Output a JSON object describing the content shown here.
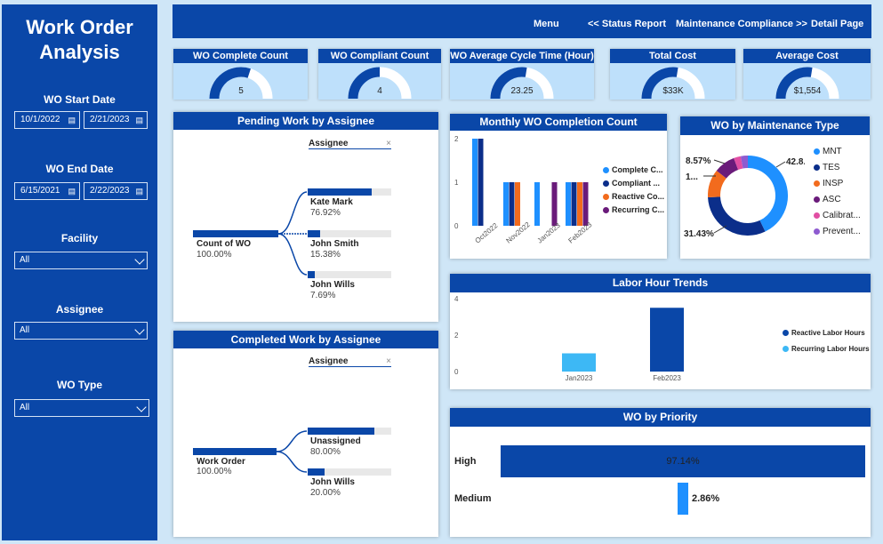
{
  "sidebar": {
    "title_line1": "Work Order",
    "title_line2": "Analysis",
    "start_date_label": "WO Start Date",
    "start_from": "10/1/2022",
    "start_to": "2/21/2023",
    "end_date_label": "WO End Date",
    "end_from": "6/15/2021",
    "end_to": "2/22/2023",
    "facility_label": "Facility",
    "facility_value": "All",
    "assignee_label": "Assignee",
    "assignee_value": "All",
    "wotype_label": "WO Type",
    "wotype_value": "All"
  },
  "nav": {
    "menu": "Menu",
    "status": "<< Status Report",
    "compliance": "Maintenance Compliance >>",
    "detail": "Detail Page"
  },
  "kpis": [
    {
      "title": "WO Complete Count",
      "value": "5",
      "fill": 0.6
    },
    {
      "title": "WO Compliant Count",
      "value": "4",
      "fill": 0.5
    },
    {
      "title": "WO Average Cycle Time (Hour)",
      "value": "23.25",
      "fill": 0.55
    },
    {
      "title": "Total Cost",
      "value": "$33K",
      "fill": 0.55
    },
    {
      "title": "Average Cost",
      "value": "$1,554",
      "fill": 0.55
    }
  ],
  "pending": {
    "title": "Pending Work by Assignee",
    "slicer": "Assignee",
    "root_label": "Count of WO",
    "root_pct": "100.00%",
    "items": [
      {
        "name": "Kate Mark",
        "pct": "76.92%",
        "value": 0.7692
      },
      {
        "name": "John Smith",
        "pct": "15.38%",
        "value": 0.1538
      },
      {
        "name": "John Wills",
        "pct": "7.69%",
        "value": 0.0769
      }
    ]
  },
  "completed": {
    "title": "Completed Work by Assignee",
    "slicer": "Assignee",
    "root_label": "Work Order",
    "root_pct": "100.00%",
    "items": [
      {
        "name": "Unassigned",
        "pct": "80.00%",
        "value": 0.8
      },
      {
        "name": "John Wills",
        "pct": "20.00%",
        "value": 0.2
      }
    ]
  },
  "colors": {
    "navy": "#0a47a8",
    "dark_navy": "#0b2e8a",
    "light_blue": "#1e90ff",
    "orange": "#f26b1d",
    "purple": "#6a1b7a",
    "pink": "#e14ea3",
    "violet": "#8e5bd0"
  },
  "monthly": {
    "title": "Monthly WO Completion Count",
    "legend": [
      "Complete C...",
      "Compliant ...",
      "Reactive Co...",
      "Recurring C..."
    ],
    "chart_data": {
      "type": "bar",
      "categories": [
        "Oct2022",
        "Nov2022",
        "Jan2023",
        "Feb2023"
      ],
      "series": [
        {
          "name": "Complete C...",
          "values": [
            2,
            1,
            1,
            1
          ]
        },
        {
          "name": "Compliant ...",
          "values": [
            2,
            1,
            0,
            1
          ]
        },
        {
          "name": "Reactive Co...",
          "values": [
            0,
            1,
            0,
            1
          ]
        },
        {
          "name": "Recurring C...",
          "values": [
            0,
            0,
            1,
            1
          ]
        }
      ],
      "yticks": [
        "2",
        "1",
        "0"
      ],
      "ylim": [
        0,
        2
      ]
    }
  },
  "maint_type": {
    "title": "WO by Maintenance Type",
    "legend": [
      "MNT",
      "TES",
      "INSP",
      "ASC",
      "Calibrat...",
      "Prevent..."
    ],
    "labels": [
      "42.8...",
      "31.43%",
      "8.57%",
      "1..."
    ],
    "chart_data": {
      "type": "pie",
      "categories": [
        "MNT",
        "TES",
        "INSP",
        "ASC",
        "Calibrat...",
        "Prevent..."
      ],
      "values": [
        42.86,
        31.43,
        11.43,
        8.57,
        2.86,
        2.86
      ]
    }
  },
  "labor": {
    "title": "Labor Hour Trends",
    "legend": [
      "Reactive Labor Hours",
      "Recurring Labor Hours"
    ],
    "chart_data": {
      "type": "bar",
      "categories": [
        "Jan2023",
        "Feb2023"
      ],
      "series": [
        {
          "name": "Recurring Labor Hours",
          "values": [
            1,
            0
          ]
        },
        {
          "name": "Reactive Labor Hours",
          "values": [
            0,
            3.5
          ]
        }
      ],
      "yticks": [
        "4",
        "2",
        "0"
      ],
      "ylim": [
        0,
        4
      ]
    }
  },
  "priority": {
    "title": "WO by Priority",
    "chart_data": {
      "type": "bar",
      "categories": [
        "High",
        "Medium"
      ],
      "values": [
        97.14,
        2.86
      ],
      "labels": [
        "97.14%",
        "2.86%"
      ]
    }
  }
}
